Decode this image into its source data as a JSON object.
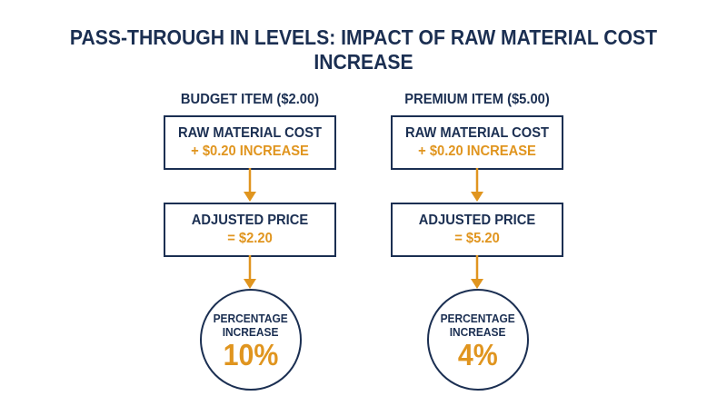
{
  "title": "PASS-THROUGH IN LEVELS: IMPACT OF RAW MATERIAL COST INCREASE",
  "columns": [
    {
      "header": "BUDGET ITEM ($2.00)",
      "box1": {
        "line1": "RAW MATERIAL COST",
        "line2": "+ $0.20 INCREASE"
      },
      "box2": {
        "line1": "ADJUSTED PRICE",
        "line2": "= $2.20"
      },
      "result": {
        "label1": "PERCENTAGE",
        "label2": "INCREASE",
        "value": "10%"
      }
    },
    {
      "header": "PREMIUM ITEM ($5.00)",
      "box1": {
        "line1": "RAW MATERIAL COST",
        "line2": "+ $0.20 INCREASE"
      },
      "box2": {
        "line1": "ADJUSTED PRICE",
        "line2": "= $5.20"
      },
      "result": {
        "label1": "PERCENTAGE",
        "label2": "INCREASE",
        "value": "4%"
      }
    }
  ],
  "colors": {
    "navy": "#1b2f52",
    "accent": "#e0951f"
  }
}
